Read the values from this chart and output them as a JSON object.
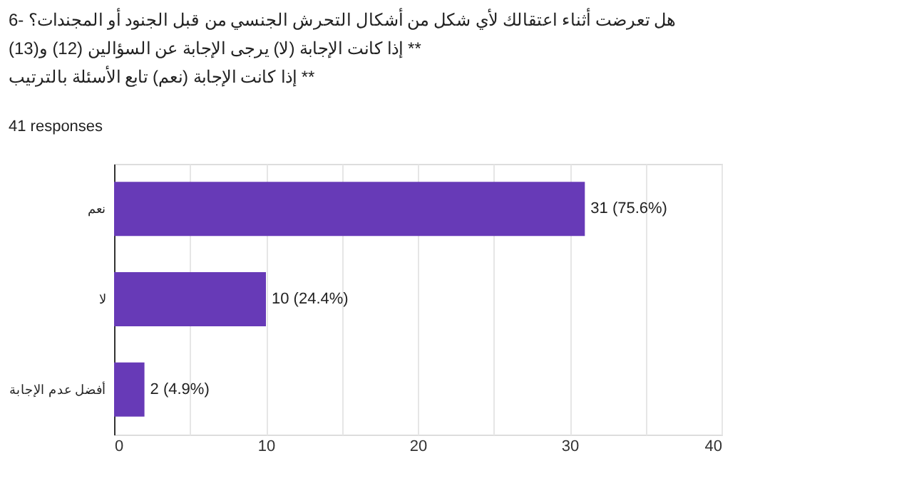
{
  "chart_data": {
    "type": "bar",
    "orientation": "horizontal",
    "title": [
      "6- هل تعرضت أثناء اعتقالك لأي شكل من أشكال التحرش الجنسي من قبل الجنود أو المجندات؟",
      "إذا كانت الإجابة (لا) يرجى الإجابة عن السؤالين (12) و(13) **",
      "إذا كانت الإجابة (نعم) تابع الأسئلة بالترتيب **"
    ],
    "subtitle": "41 responses",
    "categories": [
      "نعم",
      "لا",
      "أفضل عدم الإجابة"
    ],
    "values": [
      31,
      10,
      2
    ],
    "value_labels": [
      "31 (75.6%)",
      "10 (24.4%)",
      "2 (4.9%)"
    ],
    "color": "#673ab7",
    "xlim": [
      0,
      40
    ],
    "xticks": [
      0,
      {
        "value": 5,
        "label": null
      },
      10,
      {
        "value": 15,
        "label": null
      },
      20,
      {
        "value": 25,
        "label": null
      },
      30,
      {
        "value": 35,
        "label": null
      },
      40
    ],
    "grid": true
  }
}
